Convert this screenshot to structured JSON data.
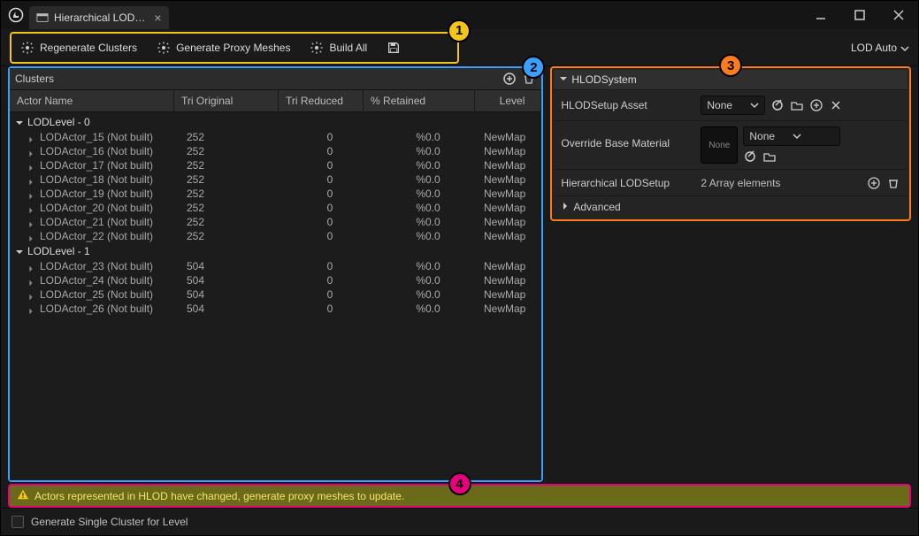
{
  "colors": {
    "callout1": "#f5c518",
    "callout2": "#3aa0ff",
    "callout3": "#ff7a1a",
    "callout4": "#e6007e",
    "bg": "#1a1a1a"
  },
  "title_tab": "Hierarchical LOD…",
  "toolbar": {
    "regenerate": "Regenerate Clusters",
    "gen_proxy": "Generate Proxy Meshes",
    "build_all": "Build All",
    "lod_mode": "LOD Auto"
  },
  "callouts": {
    "c1": "1",
    "c2": "2",
    "c3": "3",
    "c4": "4"
  },
  "clusters": {
    "title": "Clusters",
    "columns": {
      "name": "Actor Name",
      "tri_orig": "Tri Original",
      "tri_red": "Tri Reduced",
      "retained": "% Retained",
      "level": "Level"
    },
    "groups": [
      {
        "label": "LODLevel - 0",
        "rows": [
          {
            "name": "LODActor_15 (Not built)",
            "tri_orig": "252",
            "tri_red": "0",
            "ret": "%0.0",
            "level": "NewMap"
          },
          {
            "name": "LODActor_16 (Not built)",
            "tri_orig": "252",
            "tri_red": "0",
            "ret": "%0.0",
            "level": "NewMap"
          },
          {
            "name": "LODActor_17 (Not built)",
            "tri_orig": "252",
            "tri_red": "0",
            "ret": "%0.0",
            "level": "NewMap"
          },
          {
            "name": "LODActor_18 (Not built)",
            "tri_orig": "252",
            "tri_red": "0",
            "ret": "%0.0",
            "level": "NewMap"
          },
          {
            "name": "LODActor_19 (Not built)",
            "tri_orig": "252",
            "tri_red": "0",
            "ret": "%0.0",
            "level": "NewMap"
          },
          {
            "name": "LODActor_20 (Not built)",
            "tri_orig": "252",
            "tri_red": "0",
            "ret": "%0.0",
            "level": "NewMap"
          },
          {
            "name": "LODActor_21 (Not built)",
            "tri_orig": "252",
            "tri_red": "0",
            "ret": "%0.0",
            "level": "NewMap"
          },
          {
            "name": "LODActor_22 (Not built)",
            "tri_orig": "252",
            "tri_red": "0",
            "ret": "%0.0",
            "level": "NewMap"
          }
        ]
      },
      {
        "label": "LODLevel - 1",
        "rows": [
          {
            "name": "LODActor_23 (Not built)",
            "tri_orig": "504",
            "tri_red": "0",
            "ret": "%0.0",
            "level": "NewMap"
          },
          {
            "name": "LODActor_24 (Not built)",
            "tri_orig": "504",
            "tri_red": "0",
            "ret": "%0.0",
            "level": "NewMap"
          },
          {
            "name": "LODActor_25 (Not built)",
            "tri_orig": "504",
            "tri_red": "0",
            "ret": "%0.0",
            "level": "NewMap"
          },
          {
            "name": "LODActor_26 (Not built)",
            "tri_orig": "504",
            "tri_red": "0",
            "ret": "%0.0",
            "level": "NewMap"
          }
        ]
      }
    ]
  },
  "hlod": {
    "section": "HLODSystem",
    "setup_asset_label": "HLODSetup Asset",
    "setup_asset_value": "None",
    "override_label": "Override Base Material",
    "override_thumb": "None",
    "override_value": "None",
    "lodsetup_label": "Hierarchical LODSetup",
    "lodsetup_value": "2 Array elements",
    "advanced": "Advanced"
  },
  "warning": "Actors represented in HLOD have changed, generate proxy meshes to update.",
  "bottom": {
    "checkbox": "Generate Single Cluster for Level"
  }
}
